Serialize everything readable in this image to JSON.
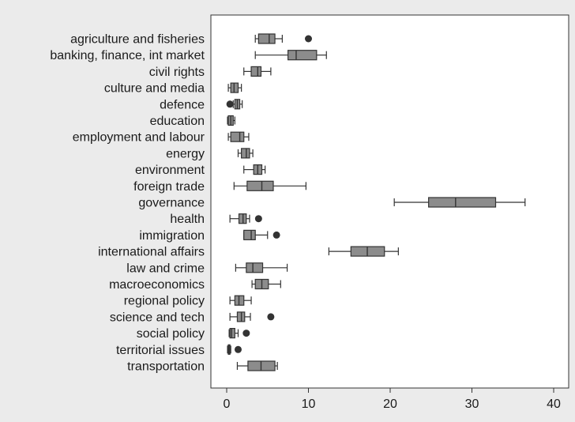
{
  "chart_data": {
    "type": "boxplot",
    "orientation": "horizontal",
    "title": "",
    "xlabel": "",
    "ylabel": "",
    "xlim": [
      0,
      41
    ],
    "xticks": [
      0,
      10,
      20,
      30,
      40
    ],
    "grid": false,
    "colors": {
      "box_fill": "#8c8c8c",
      "stroke": "#333333",
      "outlier": "#333333",
      "plot_bg": "#ffffff",
      "page_bg": "#ebebeb"
    },
    "categories": [
      {
        "label": "agriculture and fisheries",
        "whisker_low": 3.5,
        "q1": 3.9,
        "median": 5.2,
        "q3": 5.9,
        "whisker_high": 6.8,
        "outliers": [
          10.0
        ]
      },
      {
        "label": "banking, finance, int market",
        "whisker_low": 3.5,
        "q1": 7.5,
        "median": 8.5,
        "q3": 11.0,
        "whisker_high": 12.2,
        "outliers": []
      },
      {
        "label": "civil rights",
        "whisker_low": 2.1,
        "q1": 3.0,
        "median": 3.8,
        "q3": 4.2,
        "whisker_high": 5.4,
        "outliers": []
      },
      {
        "label": "culture and media",
        "whisker_low": 0.2,
        "q1": 0.5,
        "median": 0.9,
        "q3": 1.4,
        "whisker_high": 1.8,
        "outliers": []
      },
      {
        "label": "defence",
        "whisker_low": 0.8,
        "q1": 1.0,
        "median": 1.3,
        "q3": 1.6,
        "whisker_high": 1.9,
        "outliers": [
          0.4
        ]
      },
      {
        "label": "education",
        "whisker_low": 0.1,
        "q1": 0.2,
        "median": 0.5,
        "q3": 0.8,
        "whisker_high": 1.0,
        "outliers": []
      },
      {
        "label": "employment and labour",
        "whisker_low": 0.2,
        "q1": 0.5,
        "median": 1.6,
        "q3": 2.1,
        "whisker_high": 2.7,
        "outliers": []
      },
      {
        "label": "energy",
        "whisker_low": 1.4,
        "q1": 1.8,
        "median": 2.4,
        "q3": 2.8,
        "whisker_high": 3.2,
        "outliers": []
      },
      {
        "label": "environment",
        "whisker_low": 2.1,
        "q1": 3.3,
        "median": 3.8,
        "q3": 4.3,
        "whisker_high": 4.7,
        "outliers": []
      },
      {
        "label": "foreign trade",
        "whisker_low": 0.9,
        "q1": 2.5,
        "median": 4.3,
        "q3": 5.7,
        "whisker_high": 9.7,
        "outliers": []
      },
      {
        "label": "governance",
        "whisker_low": 20.5,
        "q1": 24.7,
        "median": 28.0,
        "q3": 32.9,
        "whisker_high": 36.5,
        "outliers": []
      },
      {
        "label": "health",
        "whisker_low": 0.4,
        "q1": 1.5,
        "median": 2.0,
        "q3": 2.4,
        "whisker_high": 2.8,
        "outliers": [
          3.9
        ]
      },
      {
        "label": "immigration",
        "whisker_low": 2.1,
        "q1": 2.1,
        "median": 3.0,
        "q3": 3.5,
        "whisker_high": 5.0,
        "outliers": [
          6.1
        ]
      },
      {
        "label": "international affairs",
        "whisker_low": 12.5,
        "q1": 15.2,
        "median": 17.2,
        "q3": 19.3,
        "whisker_high": 21.0,
        "outliers": []
      },
      {
        "label": "law and crime",
        "whisker_low": 1.1,
        "q1": 2.4,
        "median": 3.2,
        "q3": 4.4,
        "whisker_high": 7.4,
        "outliers": []
      },
      {
        "label": "macroeconomics",
        "whisker_low": 3.1,
        "q1": 3.5,
        "median": 4.3,
        "q3": 5.1,
        "whisker_high": 6.6,
        "outliers": []
      },
      {
        "label": "regional policy",
        "whisker_low": 0.4,
        "q1": 1.0,
        "median": 1.5,
        "q3": 2.1,
        "whisker_high": 3.0,
        "outliers": []
      },
      {
        "label": "science and tech",
        "whisker_low": 0.4,
        "q1": 1.3,
        "median": 1.8,
        "q3": 2.2,
        "whisker_high": 2.9,
        "outliers": [
          5.4
        ]
      },
      {
        "label": "social policy",
        "whisker_low": 0.3,
        "q1": 0.4,
        "median": 0.6,
        "q3": 1.0,
        "whisker_high": 1.4,
        "outliers": [
          2.4
        ]
      },
      {
        "label": "territorial issues",
        "whisker_low": 0.1,
        "q1": 0.2,
        "median": 0.3,
        "q3": 0.4,
        "whisker_high": 0.5,
        "outliers": [
          1.4
        ]
      },
      {
        "label": "transportation",
        "whisker_low": 1.3,
        "q1": 2.6,
        "median": 4.2,
        "q3": 5.9,
        "whisker_high": 6.2,
        "outliers": []
      }
    ]
  }
}
